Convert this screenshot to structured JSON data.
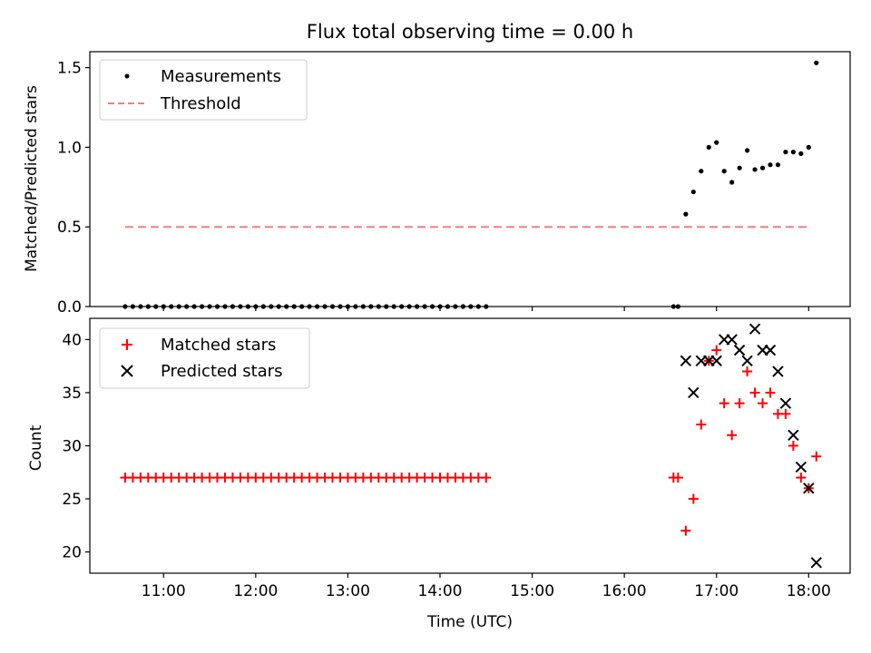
{
  "chart_data": [
    {
      "type": "scatter",
      "title": "Flux total observing time = 0.00 h",
      "xlabel": "",
      "ylabel": "Matched/Predicted stars",
      "xlim": [
        "10:12",
        "18:27"
      ],
      "ylim": [
        0,
        1.6
      ],
      "yticks": [
        0.0,
        0.5,
        1.0,
        1.5
      ],
      "ytick_labels": [
        "0.0",
        "0.5",
        "1.0",
        "1.5"
      ],
      "legend_position": "upper-left",
      "series": [
        {
          "name": "Measurements",
          "marker": "dot",
          "color": "#000000",
          "x": [
            "10:35",
            "10:40",
            "10:45",
            "10:50",
            "10:55",
            "11:00",
            "11:05",
            "11:10",
            "11:15",
            "11:20",
            "11:25",
            "11:30",
            "11:35",
            "11:40",
            "11:45",
            "11:50",
            "11:55",
            "12:00",
            "12:05",
            "12:10",
            "12:15",
            "12:20",
            "12:25",
            "12:30",
            "12:35",
            "12:40",
            "12:45",
            "12:50",
            "12:55",
            "13:00",
            "13:05",
            "13:10",
            "13:15",
            "13:20",
            "13:25",
            "13:30",
            "13:35",
            "13:40",
            "13:45",
            "13:50",
            "13:55",
            "14:00",
            "14:05",
            "14:10",
            "14:15",
            "14:20",
            "14:25",
            "14:30",
            "16:32",
            "16:35",
            "16:40",
            "16:45",
            "16:50",
            "16:55",
            "17:00",
            "17:05",
            "17:10",
            "17:15",
            "17:20",
            "17:25",
            "17:30",
            "17:35",
            "17:40",
            "17:45",
            "17:50",
            "17:55",
            "18:00",
            "18:05"
          ],
          "y": [
            0,
            0,
            0,
            0,
            0,
            0,
            0,
            0,
            0,
            0,
            0,
            0,
            0,
            0,
            0,
            0,
            0,
            0,
            0,
            0,
            0,
            0,
            0,
            0,
            0,
            0,
            0,
            0,
            0,
            0,
            0,
            0,
            0,
            0,
            0,
            0,
            0,
            0,
            0,
            0,
            0,
            0,
            0,
            0,
            0,
            0,
            0,
            0,
            0,
            0,
            0.58,
            0.72,
            0.85,
            1.0,
            1.03,
            0.85,
            0.78,
            0.87,
            0.98,
            0.86,
            0.87,
            0.89,
            0.89,
            0.97,
            0.97,
            0.96,
            1.0,
            1.53
          ]
        },
        {
          "name": "Threshold",
          "line": "dashed",
          "color": "#f08080",
          "x": [
            "10:35",
            "18:00"
          ],
          "y": [
            0.5,
            0.5
          ]
        }
      ]
    },
    {
      "type": "scatter",
      "title": "",
      "xlabel": "Time (UTC)",
      "ylabel": "Count",
      "xlim": [
        "10:12",
        "18:27"
      ],
      "ylim": [
        18,
        42
      ],
      "yticks": [
        20,
        25,
        30,
        35,
        40
      ],
      "ytick_labels": [
        "20",
        "25",
        "30",
        "35",
        "40"
      ],
      "xticks": [
        "11:00",
        "12:00",
        "13:00",
        "14:00",
        "15:00",
        "16:00",
        "17:00",
        "18:00"
      ],
      "xtick_labels": [
        "11:00",
        "12:00",
        "13:00",
        "14:00",
        "15:00",
        "16:00",
        "17:00",
        "18:00"
      ],
      "legend_position": "upper-left",
      "series": [
        {
          "name": "Matched stars",
          "marker": "plus",
          "color": "#ff0000",
          "x": [
            "10:35",
            "10:40",
            "10:45",
            "10:50",
            "10:55",
            "11:00",
            "11:05",
            "11:10",
            "11:15",
            "11:20",
            "11:25",
            "11:30",
            "11:35",
            "11:40",
            "11:45",
            "11:50",
            "11:55",
            "12:00",
            "12:05",
            "12:10",
            "12:15",
            "12:20",
            "12:25",
            "12:30",
            "12:35",
            "12:40",
            "12:45",
            "12:50",
            "12:55",
            "13:00",
            "13:05",
            "13:10",
            "13:15",
            "13:20",
            "13:25",
            "13:30",
            "13:35",
            "13:40",
            "13:45",
            "13:50",
            "13:55",
            "14:00",
            "14:05",
            "14:10",
            "14:15",
            "14:20",
            "14:25",
            "14:30",
            "16:32",
            "16:35",
            "16:40",
            "16:45",
            "16:50",
            "16:55",
            "17:00",
            "17:05",
            "17:10",
            "17:15",
            "17:20",
            "17:25",
            "17:30",
            "17:35",
            "17:40",
            "17:45",
            "17:50",
            "17:55",
            "18:00",
            "18:05"
          ],
          "y": [
            27,
            27,
            27,
            27,
            27,
            27,
            27,
            27,
            27,
            27,
            27,
            27,
            27,
            27,
            27,
            27,
            27,
            27,
            27,
            27,
            27,
            27,
            27,
            27,
            27,
            27,
            27,
            27,
            27,
            27,
            27,
            27,
            27,
            27,
            27,
            27,
            27,
            27,
            27,
            27,
            27,
            27,
            27,
            27,
            27,
            27,
            27,
            27,
            27,
            27,
            22,
            25,
            32,
            38,
            39,
            34,
            31,
            34,
            37,
            35,
            34,
            35,
            33,
            33,
            30,
            27,
            26,
            29
          ]
        },
        {
          "name": "Predicted stars",
          "marker": "x",
          "color": "#000000",
          "x": [
            "16:40",
            "16:45",
            "16:50",
            "16:55",
            "17:00",
            "17:05",
            "17:10",
            "17:15",
            "17:20",
            "17:25",
            "17:30",
            "17:35",
            "17:40",
            "17:45",
            "17:50",
            "17:55",
            "18:00",
            "18:05"
          ],
          "y": [
            38,
            35,
            38,
            38,
            38,
            40,
            40,
            39,
            38,
            41,
            39,
            39,
            37,
            34,
            31,
            28,
            26,
            19
          ]
        }
      ]
    }
  ]
}
